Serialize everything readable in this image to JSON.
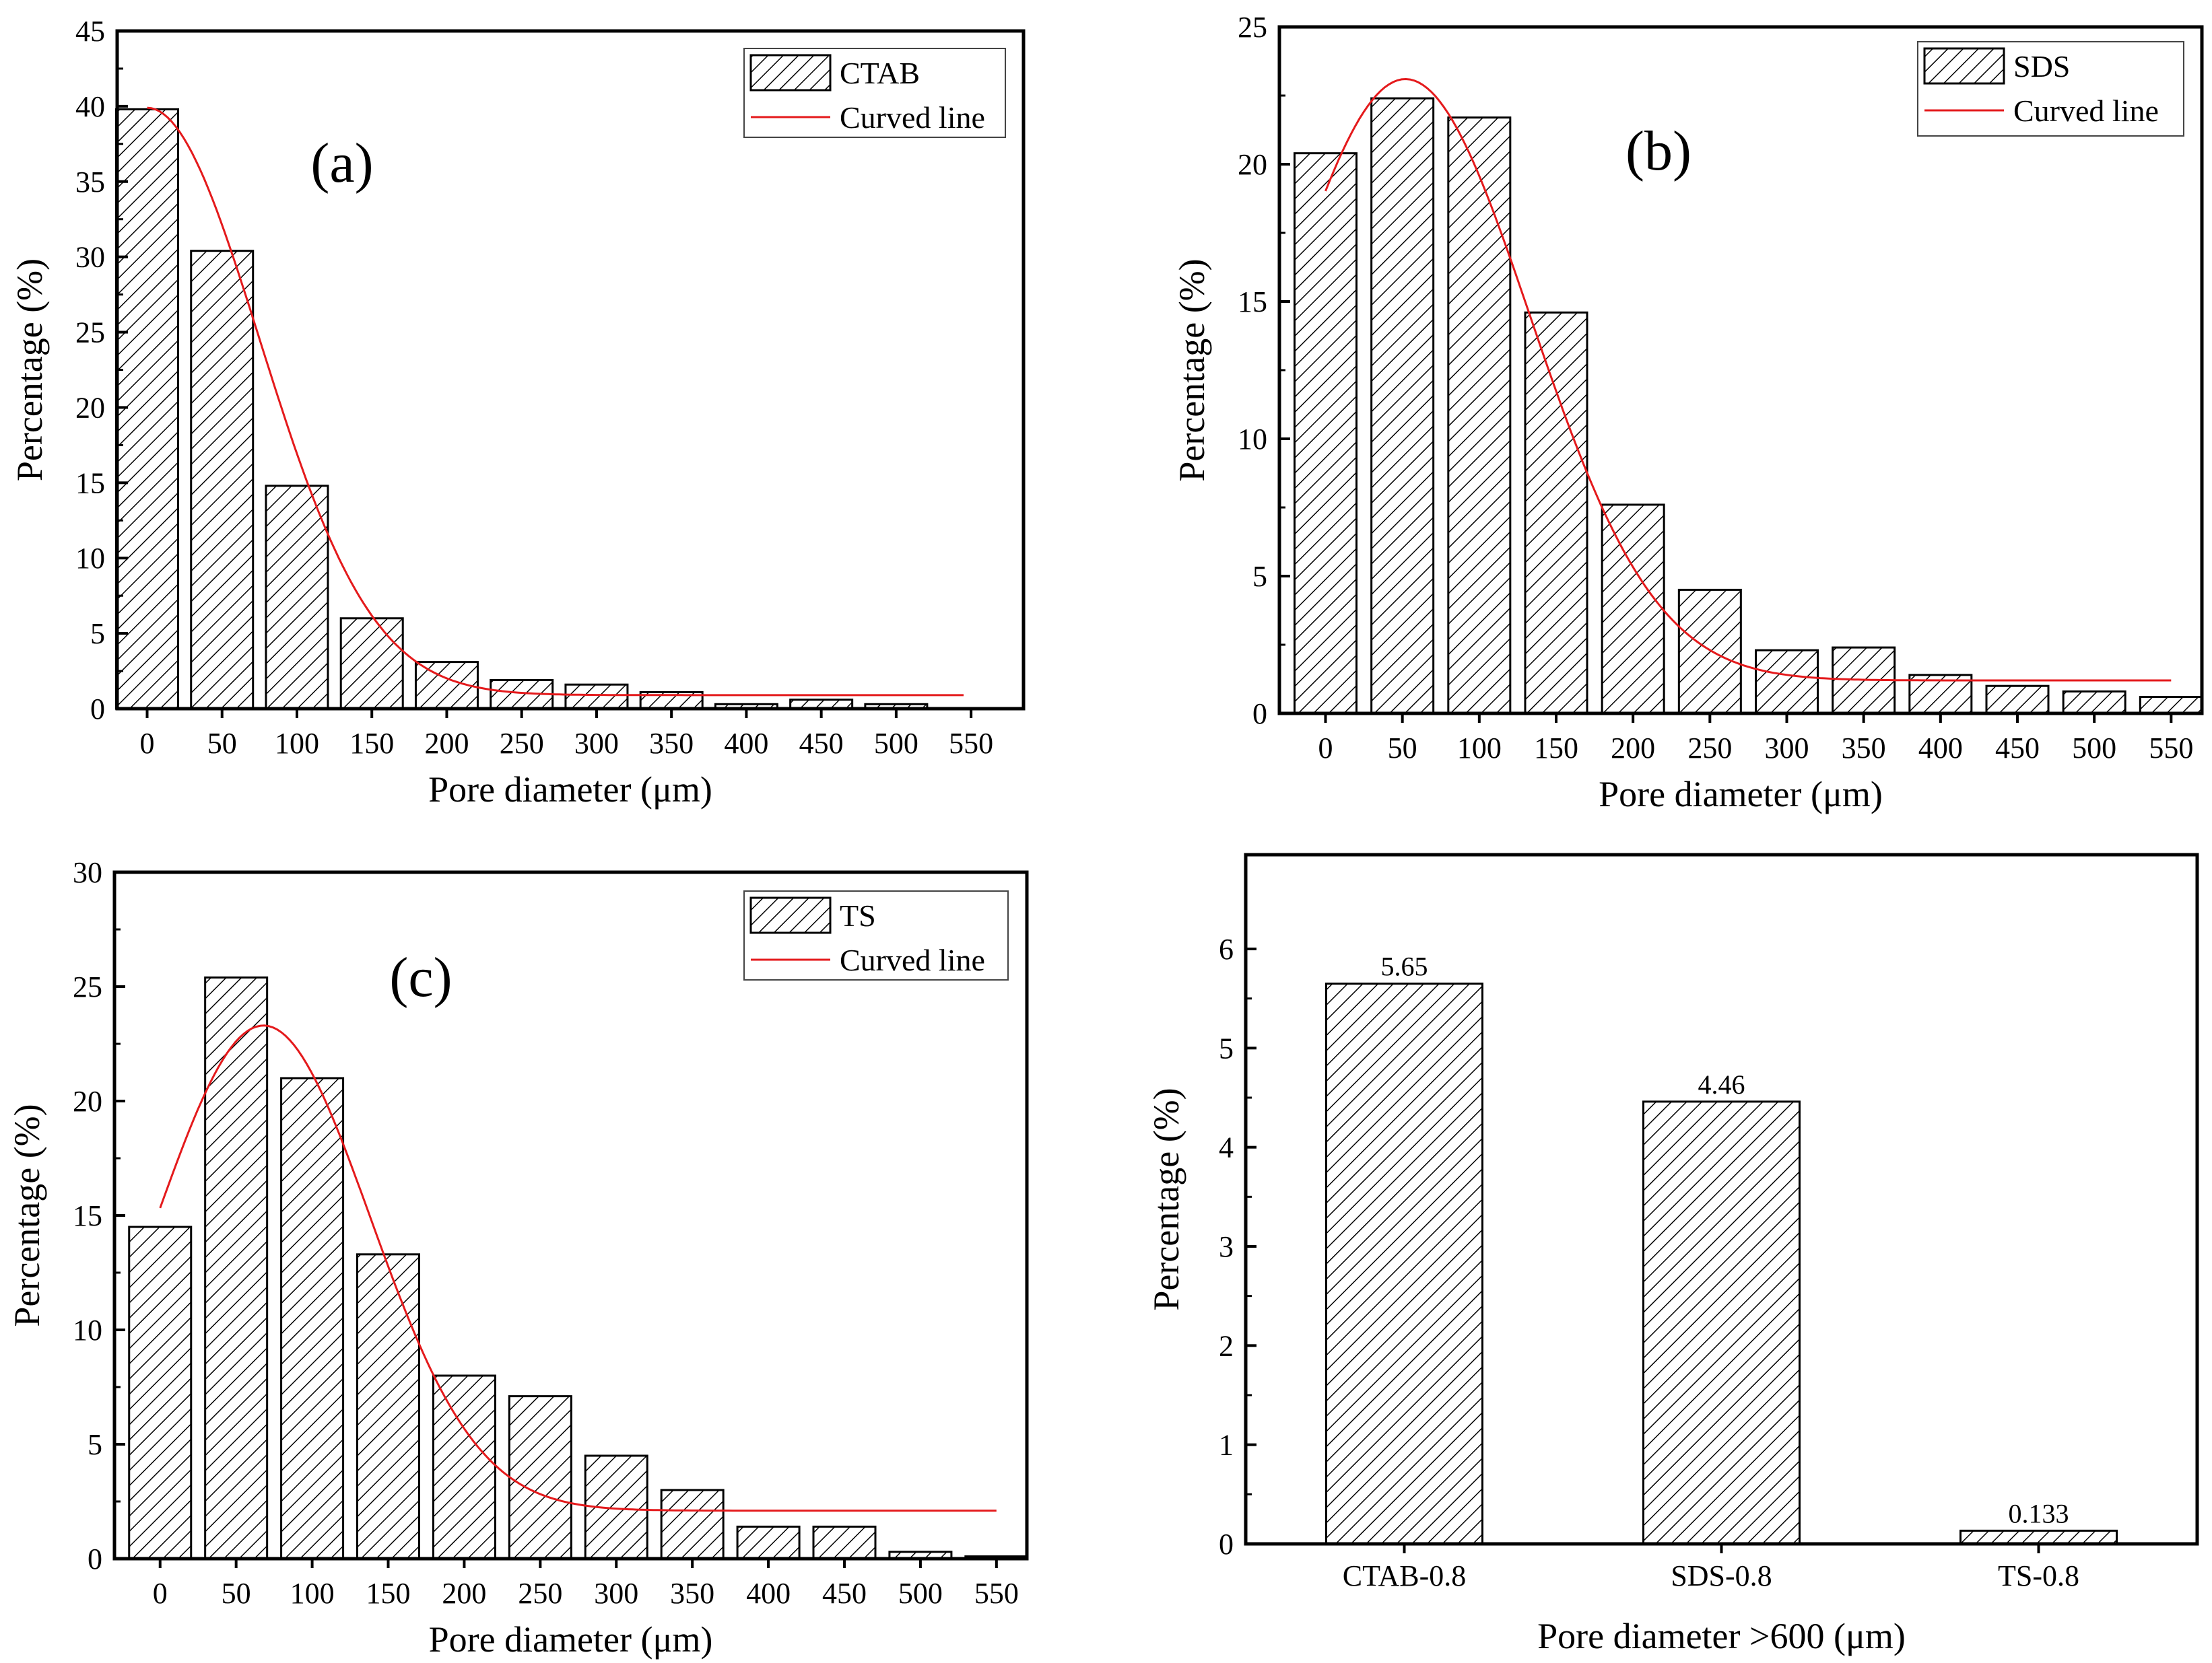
{
  "figure": {
    "colors": {
      "bar_fill": "#ffffff",
      "hatch": "#000000",
      "curve": "#e41a1c",
      "axis": "#000000"
    }
  },
  "chart_data": [
    {
      "type": "bar",
      "panel_label": "(a)",
      "series_name": "CTAB",
      "curve_name": "Curved line",
      "xlabel": "Pore diameter (μm)",
      "ylabel": "Percentage (%)",
      "x_ticks": [
        "0",
        "50",
        "100",
        "150",
        "200",
        "250",
        "300",
        "350",
        "400",
        "450",
        "500",
        "550"
      ],
      "y_ticks": [
        "0",
        "5",
        "10",
        "15",
        "20",
        "25",
        "30",
        "35",
        "40",
        "45"
      ],
      "xlim": [
        -20,
        585
      ],
      "ylim": [
        0,
        45
      ],
      "x": [
        0,
        50,
        100,
        150,
        200,
        250,
        300,
        350,
        400,
        450,
        500
      ],
      "values": [
        39.8,
        30.4,
        14.8,
        6.0,
        3.1,
        1.9,
        1.6,
        1.1,
        0.3,
        0.6,
        0.3
      ],
      "curve": {
        "x0": 0,
        "x1": 545,
        "y0": 0.9,
        "A": 39.0,
        "xc": 0,
        "w": 150
      }
    },
    {
      "type": "bar",
      "panel_label": "(b)",
      "series_name": "SDS",
      "curve_name": "Curved line",
      "xlabel": "Pore diameter (μm)",
      "ylabel": "Percentage (%)",
      "x_ticks": [
        "0",
        "50",
        "100",
        "150",
        "200",
        "250",
        "300",
        "350",
        "400",
        "450",
        "500",
        "550"
      ],
      "y_ticks": [
        "0",
        "5",
        "10",
        "15",
        "20",
        "25"
      ],
      "xlim": [
        -30,
        570
      ],
      "ylim": [
        0,
        25
      ],
      "x": [
        0,
        50,
        100,
        150,
        200,
        250,
        300,
        350,
        400,
        450,
        500,
        550
      ],
      "values": [
        20.4,
        22.4,
        21.7,
        14.6,
        7.6,
        4.5,
        2.3,
        2.4,
        1.4,
        1.0,
        0.8,
        0.6
      ],
      "curve": {
        "x0": 0,
        "x1": 550,
        "y0": 1.2,
        "A": 21.9,
        "xc": 52,
        "w": 162
      }
    },
    {
      "type": "bar",
      "panel_label": "(c)",
      "series_name": "TS",
      "curve_name": "Curved line",
      "xlabel": "Pore diameter (μm)",
      "ylabel": "Percentage (%)",
      "x_ticks": [
        "0",
        "50",
        "100",
        "150",
        "200",
        "250",
        "300",
        "350",
        "400",
        "450",
        "500",
        "550"
      ],
      "y_ticks": [
        "0",
        "5",
        "10",
        "15",
        "20",
        "25",
        "30"
      ],
      "xlim": [
        -30,
        570
      ],
      "ylim": [
        0,
        30
      ],
      "x": [
        0,
        50,
        100,
        150,
        200,
        250,
        300,
        350,
        400,
        450,
        500,
        550
      ],
      "values": [
        14.5,
        25.4,
        21.0,
        13.3,
        8.0,
        7.1,
        4.5,
        3.0,
        1.4,
        1.4,
        0.3,
        0.1
      ],
      "curve": {
        "x0": 0,
        "x1": 550,
        "y0": 2.1,
        "A": 21.2,
        "xc": 68,
        "w": 140
      }
    },
    {
      "type": "bar",
      "xlabel": "Pore diameter >600 (μm)",
      "ylabel": "Percentage (%)",
      "categories": [
        "CTAB-0.8",
        "SDS-0.8",
        "TS-0.8"
      ],
      "y_ticks": [
        "0",
        "1",
        "2",
        "3",
        "4",
        "5",
        "6"
      ],
      "ylim": [
        0,
        6.95
      ],
      "values": [
        5.65,
        4.46,
        0.133
      ],
      "value_labels": [
        "5.65",
        "4.46",
        "0.133"
      ]
    }
  ]
}
